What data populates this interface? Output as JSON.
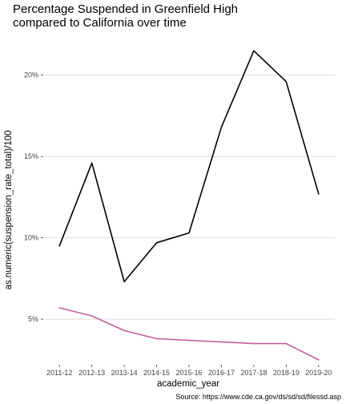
{
  "chart_data": {
    "type": "line",
    "title_lines": [
      "Percentage Suspended in Greenfield High",
      "compared to California over time"
    ],
    "xlabel": "academic_year",
    "ylabel": "as.numeric(suspension_rate_total)/100",
    "caption": "Source: https://www.cde.ca.gov/ds/sd/sd/filessd.asp",
    "categories": [
      "2011-12",
      "2012-13",
      "2013-14",
      "2014-15",
      "2015-16",
      "2016-17",
      "2017-18",
      "2018-19",
      "2019-20"
    ],
    "ylim": [
      0.022,
      0.2235
    ],
    "yticks": [
      0.05,
      0.1,
      0.15,
      0.2
    ],
    "ytick_labels": [
      "5%",
      "10%",
      "15%",
      "20%"
    ],
    "grid": true,
    "legend": "none",
    "series": [
      {
        "color": "#000000",
        "values": [
          0.095,
          0.146,
          0.073,
          0.097,
          0.103,
          0.168,
          0.215,
          0.196,
          0.127
        ]
      },
      {
        "color": "#c0609a",
        "values": [
          0.057,
          0.052,
          0.043,
          0.038,
          0.037,
          0.036,
          0.035,
          0.035,
          0.025
        ]
      }
    ]
  }
}
